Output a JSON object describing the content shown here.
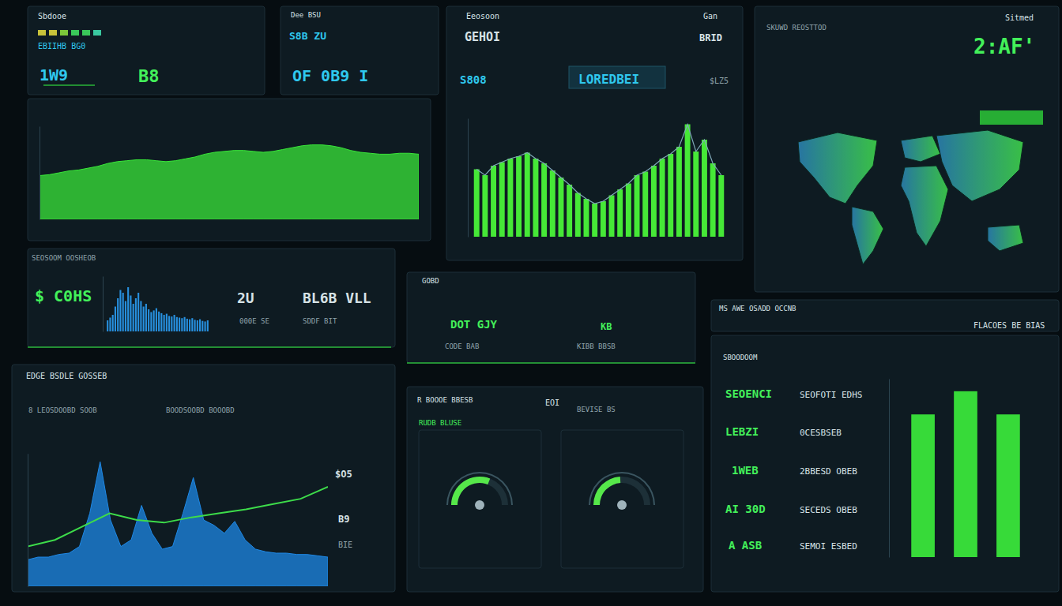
{
  "panels": [
    {
      "texts": [
        "Sbdooe",
        "EBIIHB BG0",
        "1W9",
        "B8"
      ]
    },
    {
      "texts": [
        "Dee BSU",
        "S8B ZU",
        "OF 0B9 I"
      ]
    },
    {
      "texts": [
        "Eeosoon",
        "Gan",
        "GEHOI",
        "BRID",
        "S808",
        "LOREDBEI",
        "$LZ5"
      ]
    },
    {
      "texts": [
        "Sitmed",
        "SKUWD REOSTTOD",
        "2:AF'"
      ]
    },
    {
      "texts": [
        "SEOSOOM OOSHEOB",
        "$ C0HS",
        "2U",
        "BL6B VLL",
        "000E SE",
        "SDDF BIT"
      ]
    },
    {
      "texts": [
        "GOBD",
        "DOT GJY",
        "KB",
        "CODE BAB",
        "KIBB BBSB"
      ]
    },
    {
      "texts": [
        "MS AWE OSADD OCCNB",
        "FLACOES BE BIAS"
      ]
    },
    {
      "texts": [
        "EDGE BSDLE GOSSEB",
        "8 LEOSDOOBD SOOB",
        "BOODSOOBD BOOOBD",
        "$O5",
        "B9",
        "BIE"
      ]
    },
    {
      "texts": [
        "R BOOOE BBESB",
        "EOI",
        "BEVISE BS",
        "RUDB BLUSE"
      ]
    },
    {
      "texts": [
        "SBOODOOM",
        "SEOENCI",
        "SEOFOTI EDHS",
        "LEBZI",
        "0CESBSEB",
        "1WEB",
        "2BBESD OBEB",
        "AI 30D",
        "SECEDS OBEB",
        "A ASB",
        "SEMOI ESBED"
      ]
    }
  ],
  "chart_data": [
    {
      "type": "area",
      "color": "#39e639",
      "ylim": [
        0,
        100
      ],
      "tick_labels": false,
      "values": [
        47,
        48,
        50,
        52,
        53,
        55,
        57,
        60,
        62,
        63,
        64,
        64,
        63,
        62,
        63,
        65,
        67,
        70,
        72,
        73,
        74,
        74,
        73,
        72,
        73,
        75,
        77,
        79,
        80,
        80,
        79,
        77,
        74,
        72,
        71,
        70,
        70,
        71,
        71,
        70
      ]
    },
    {
      "type": "bar",
      "color": "#4cff3a",
      "ylim": [
        0,
        100
      ],
      "tick_labels": false,
      "values": [
        57,
        52,
        60,
        63,
        66,
        68,
        71,
        66,
        62,
        56,
        50,
        44,
        37,
        32,
        28,
        30,
        35,
        40,
        45,
        52,
        55,
        60,
        66,
        70,
        76,
        95,
        72,
        82,
        62,
        52
      ]
    },
    {
      "type": "bar",
      "color": "#2a9df4",
      "ylim": [
        0,
        100
      ],
      "tick_labels": false,
      "values": [
        20,
        25,
        30,
        45,
        60,
        75,
        70,
        55,
        80,
        65,
        50,
        60,
        70,
        55,
        45,
        50,
        40,
        35,
        38,
        42,
        36,
        33,
        30,
        32,
        28,
        27,
        30,
        26,
        25,
        24,
        26,
        23,
        22,
        24,
        21,
        20,
        22,
        19,
        18,
        20
      ]
    },
    {
      "type": "area",
      "color": "#1e88e5",
      "ylim": [
        0,
        100
      ],
      "tick_labels": false,
      "values": [
        20,
        22,
        22,
        24,
        25,
        30,
        55,
        94,
        50,
        30,
        35,
        61,
        40,
        28,
        30,
        55,
        82,
        50,
        46,
        40,
        49,
        35,
        28,
        26,
        25,
        25,
        24,
        24,
        23,
        22
      ]
    },
    {
      "type": "line",
      "color": "#3ddc4a",
      "ylim": [
        0,
        100
      ],
      "tick_labels": false,
      "values": [
        30,
        35,
        45,
        55,
        50,
        48,
        52,
        55,
        58,
        62,
        66,
        75
      ]
    },
    {
      "type": "gauge",
      "color": "#56e84a",
      "ylim": [
        0,
        100
      ],
      "tick_labels": false,
      "values": [
        62
      ]
    },
    {
      "type": "gauge",
      "color": "#56e84a",
      "ylim": [
        0,
        100
      ],
      "tick_labels": false,
      "values": [
        48
      ]
    },
    {
      "type": "bar",
      "color": "#3cf03c",
      "ylim": [
        0,
        100
      ],
      "tick_labels": false,
      "values": [
        80,
        93,
        80
      ]
    }
  ]
}
